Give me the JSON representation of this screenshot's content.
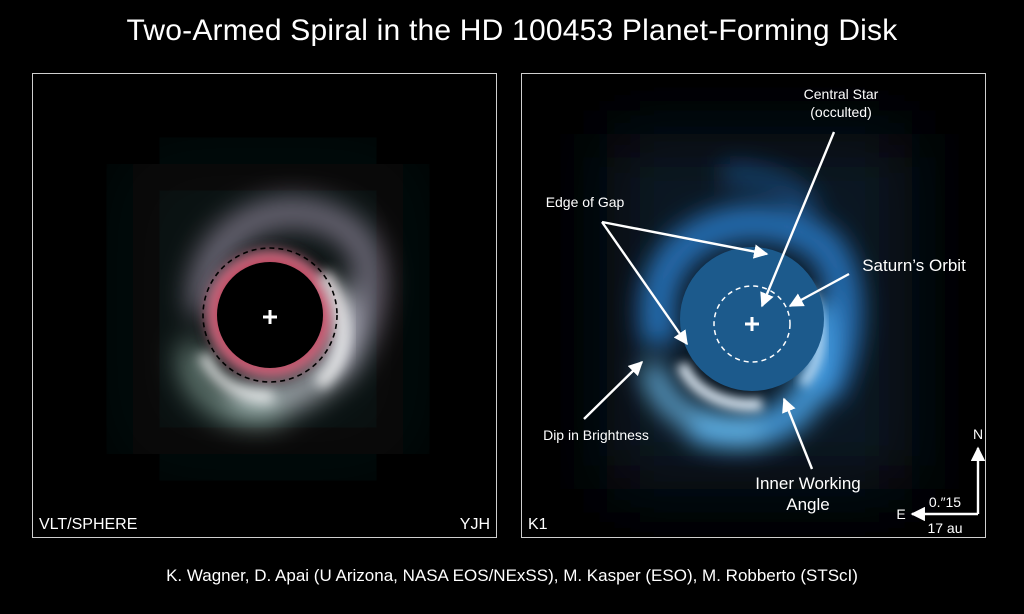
{
  "title": "Two-Armed Spiral in the HD 100453 Planet-Forming Disk",
  "left_panel": {
    "instrument": "VLT/SPHERE",
    "band": "YJH"
  },
  "right_panel": {
    "band": "K1",
    "labels": {
      "central_star_line1": "Central Star",
      "central_star_line2": "(occulted)",
      "edge_of_gap": "Edge of Gap",
      "saturns_orbit": "Saturn’s Orbit",
      "dip_in_brightness": "Dip in Brightness",
      "inner_working_angle_line1": "Inner Working",
      "inner_working_angle_line2": "Angle"
    },
    "compass": {
      "north": "N",
      "east": "E"
    },
    "scale": {
      "angular": "0.″15",
      "physical": "17 au"
    }
  },
  "credit": "K. Wagner, D. Apai (U Arizona, NASA EOS/NExSS), M. Kasper (ESO), M. Robberto (STScI)",
  "colors": {
    "background": "#000000",
    "left_ring": "#c8324e",
    "right_disk": "#3aa0e8",
    "mask_fill": "#1c5a8c"
  }
}
